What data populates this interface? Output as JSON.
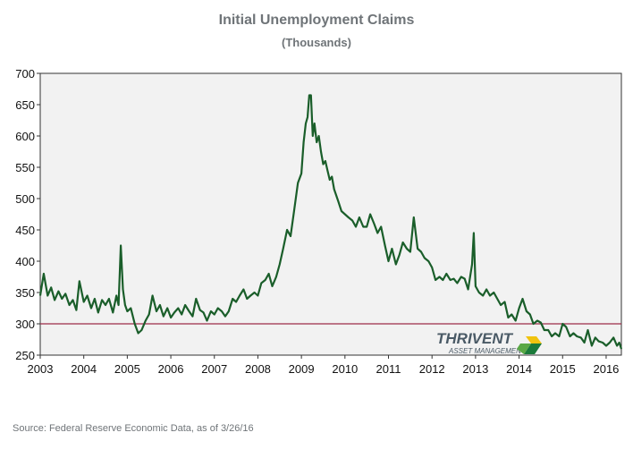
{
  "chart_data": {
    "type": "line",
    "title": "Initial Unemployment Claims",
    "subtitle": "(Thousands)",
    "xlabel": "",
    "ylabel": "",
    "xlim": [
      2003.0,
      2016.35
    ],
    "ylim": [
      250,
      700
    ],
    "x_ticks": [
      "2003",
      "2004",
      "2005",
      "2006",
      "2007",
      "2008",
      "2009",
      "2010",
      "2011",
      "2012",
      "2013",
      "2014",
      "2015",
      "2016"
    ],
    "y_ticks": [
      "250",
      "300",
      "350",
      "400",
      "450",
      "500",
      "550",
      "600",
      "650",
      "700"
    ],
    "grid": false,
    "reference_line": {
      "y": 300,
      "color": "#9b2d4a"
    },
    "series": [
      {
        "color": "#1a5e2a",
        "points": [
          [
            2003.0,
            345
          ],
          [
            2003.08,
            380
          ],
          [
            2003.17,
            345
          ],
          [
            2003.25,
            358
          ],
          [
            2003.33,
            338
          ],
          [
            2003.42,
            352
          ],
          [
            2003.5,
            340
          ],
          [
            2003.58,
            348
          ],
          [
            2003.67,
            330
          ],
          [
            2003.75,
            338
          ],
          [
            2003.83,
            322
          ],
          [
            2003.9,
            368
          ],
          [
            2004.0,
            335
          ],
          [
            2004.08,
            345
          ],
          [
            2004.17,
            325
          ],
          [
            2004.25,
            340
          ],
          [
            2004.33,
            318
          ],
          [
            2004.42,
            338
          ],
          [
            2004.5,
            330
          ],
          [
            2004.58,
            340
          ],
          [
            2004.67,
            318
          ],
          [
            2004.75,
            345
          ],
          [
            2004.8,
            330
          ],
          [
            2004.85,
            425
          ],
          [
            2004.9,
            355
          ],
          [
            2004.95,
            330
          ],
          [
            2005.0,
            320
          ],
          [
            2005.08,
            325
          ],
          [
            2005.17,
            300
          ],
          [
            2005.25,
            285
          ],
          [
            2005.33,
            290
          ],
          [
            2005.42,
            305
          ],
          [
            2005.5,
            315
          ],
          [
            2005.58,
            345
          ],
          [
            2005.67,
            320
          ],
          [
            2005.75,
            330
          ],
          [
            2005.83,
            312
          ],
          [
            2005.92,
            325
          ],
          [
            2006.0,
            310
          ],
          [
            2006.08,
            318
          ],
          [
            2006.17,
            325
          ],
          [
            2006.25,
            315
          ],
          [
            2006.33,
            330
          ],
          [
            2006.42,
            320
          ],
          [
            2006.5,
            312
          ],
          [
            2006.58,
            340
          ],
          [
            2006.67,
            322
          ],
          [
            2006.75,
            318
          ],
          [
            2006.83,
            305
          ],
          [
            2006.92,
            320
          ],
          [
            2007.0,
            315
          ],
          [
            2007.08,
            325
          ],
          [
            2007.17,
            320
          ],
          [
            2007.25,
            312
          ],
          [
            2007.33,
            320
          ],
          [
            2007.42,
            340
          ],
          [
            2007.5,
            335
          ],
          [
            2007.58,
            345
          ],
          [
            2007.67,
            355
          ],
          [
            2007.75,
            340
          ],
          [
            2007.83,
            345
          ],
          [
            2007.92,
            350
          ],
          [
            2008.0,
            345
          ],
          [
            2008.08,
            365
          ],
          [
            2008.17,
            370
          ],
          [
            2008.25,
            380
          ],
          [
            2008.33,
            360
          ],
          [
            2008.42,
            375
          ],
          [
            2008.5,
            395
          ],
          [
            2008.58,
            420
          ],
          [
            2008.67,
            450
          ],
          [
            2008.75,
            440
          ],
          [
            2008.83,
            480
          ],
          [
            2008.92,
            525
          ],
          [
            2009.0,
            540
          ],
          [
            2009.05,
            590
          ],
          [
            2009.1,
            620
          ],
          [
            2009.14,
            630
          ],
          [
            2009.18,
            665
          ],
          [
            2009.22,
            665
          ],
          [
            2009.26,
            600
          ],
          [
            2009.3,
            620
          ],
          [
            2009.35,
            590
          ],
          [
            2009.4,
            600
          ],
          [
            2009.45,
            575
          ],
          [
            2009.5,
            555
          ],
          [
            2009.55,
            560
          ],
          [
            2009.6,
            545
          ],
          [
            2009.65,
            530
          ],
          [
            2009.7,
            535
          ],
          [
            2009.75,
            515
          ],
          [
            2009.8,
            505
          ],
          [
            2009.85,
            495
          ],
          [
            2009.92,
            480
          ],
          [
            2010.0,
            475
          ],
          [
            2010.08,
            470
          ],
          [
            2010.17,
            465
          ],
          [
            2010.25,
            455
          ],
          [
            2010.33,
            470
          ],
          [
            2010.42,
            455
          ],
          [
            2010.5,
            455
          ],
          [
            2010.58,
            475
          ],
          [
            2010.67,
            460
          ],
          [
            2010.75,
            445
          ],
          [
            2010.83,
            455
          ],
          [
            2010.92,
            425
          ],
          [
            2011.0,
            400
          ],
          [
            2011.08,
            420
          ],
          [
            2011.17,
            395
          ],
          [
            2011.25,
            410
          ],
          [
            2011.33,
            430
          ],
          [
            2011.42,
            420
          ],
          [
            2011.5,
            415
          ],
          [
            2011.58,
            470
          ],
          [
            2011.67,
            420
          ],
          [
            2011.75,
            415
          ],
          [
            2011.83,
            405
          ],
          [
            2011.92,
            400
          ],
          [
            2012.0,
            390
          ],
          [
            2012.08,
            370
          ],
          [
            2012.17,
            375
          ],
          [
            2012.25,
            370
          ],
          [
            2012.33,
            380
          ],
          [
            2012.42,
            370
          ],
          [
            2012.5,
            372
          ],
          [
            2012.58,
            365
          ],
          [
            2012.67,
            375
          ],
          [
            2012.75,
            372
          ],
          [
            2012.83,
            355
          ],
          [
            2012.92,
            395
          ],
          [
            2012.96,
            445
          ],
          [
            2013.0,
            360
          ],
          [
            2013.08,
            350
          ],
          [
            2013.17,
            345
          ],
          [
            2013.25,
            355
          ],
          [
            2013.33,
            345
          ],
          [
            2013.42,
            350
          ],
          [
            2013.5,
            340
          ],
          [
            2013.58,
            330
          ],
          [
            2013.67,
            335
          ],
          [
            2013.75,
            310
          ],
          [
            2013.83,
            315
          ],
          [
            2013.92,
            305
          ],
          [
            2014.0,
            325
          ],
          [
            2014.08,
            340
          ],
          [
            2014.17,
            320
          ],
          [
            2014.25,
            315
          ],
          [
            2014.33,
            300
          ],
          [
            2014.42,
            305
          ],
          [
            2014.5,
            302
          ],
          [
            2014.58,
            290
          ],
          [
            2014.67,
            290
          ],
          [
            2014.75,
            280
          ],
          [
            2014.83,
            285
          ],
          [
            2014.92,
            280
          ],
          [
            2015.0,
            300
          ],
          [
            2015.08,
            295
          ],
          [
            2015.17,
            280
          ],
          [
            2015.25,
            285
          ],
          [
            2015.33,
            280
          ],
          [
            2015.42,
            278
          ],
          [
            2015.5,
            270
          ],
          [
            2015.58,
            290
          ],
          [
            2015.67,
            265
          ],
          [
            2015.75,
            278
          ],
          [
            2015.83,
            272
          ],
          [
            2015.92,
            270
          ],
          [
            2016.0,
            265
          ],
          [
            2016.08,
            270
          ],
          [
            2016.17,
            278
          ],
          [
            2016.25,
            265
          ],
          [
            2016.3,
            270
          ],
          [
            2016.35,
            260
          ]
        ]
      }
    ]
  },
  "source_text": "Source: Federal Reserve Economic Data, as of 3/26/16",
  "logo": {
    "name": "THRIVENT",
    "tagline": "ASSET MANAGEMENT"
  }
}
